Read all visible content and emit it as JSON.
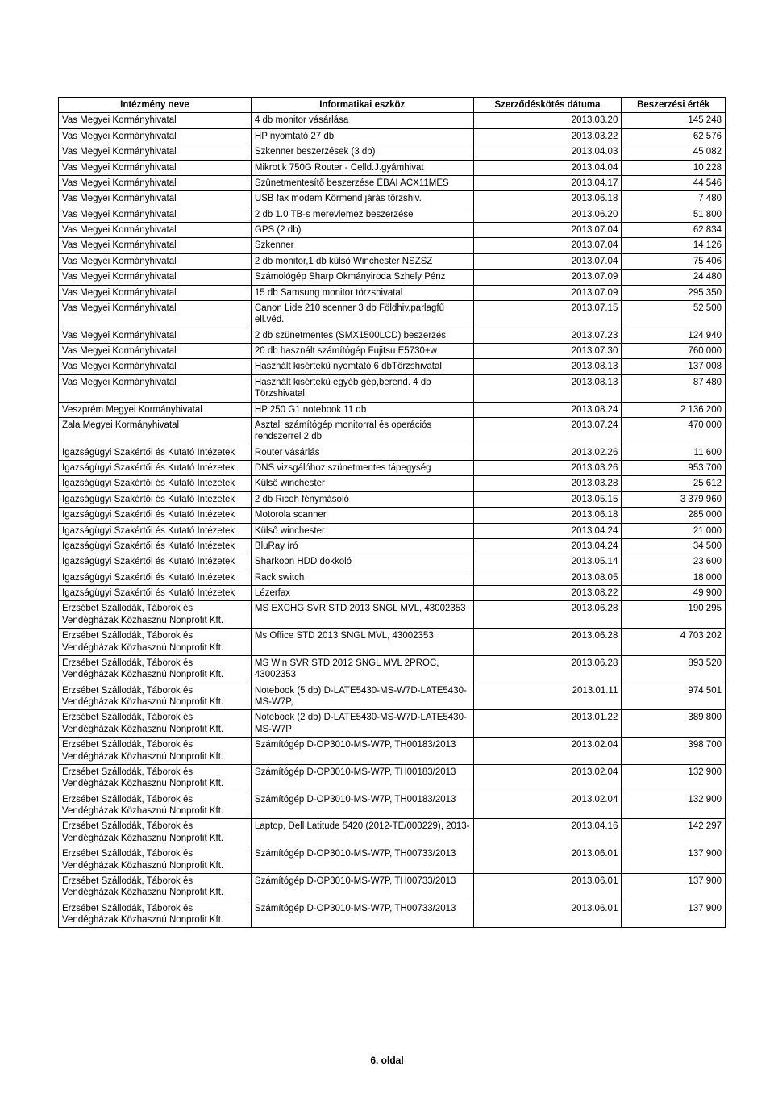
{
  "table": {
    "headers": {
      "institution": "Intézmény neve",
      "tool": "Informatikai eszköz",
      "date": "Szerződéskötés dátuma",
      "value": "Beszerzési érték"
    },
    "column_alignment": [
      "left",
      "left",
      "right",
      "right"
    ],
    "font_size_pt": 9,
    "header_font_weight": "bold",
    "border_color": "#000000",
    "background_color": "#ffffff",
    "rows": [
      {
        "institution": "Vas Megyei Kormányhivatal",
        "tool": "4 db monitor vásárlása",
        "date": "2013.03.20",
        "value": "145 248"
      },
      {
        "institution": "Vas Megyei Kormányhivatal",
        "tool": "HP nyomtató 27 db",
        "date": "2013.03.22",
        "value": "62 576"
      },
      {
        "institution": "Vas Megyei Kormányhivatal",
        "tool": "Szkenner beszerzések (3 db)",
        "date": "2013.04.03",
        "value": "45 082"
      },
      {
        "institution": "Vas Megyei Kormányhivatal",
        "tool": "Mikrotik 750G Router - Celld.J.gyámhivat",
        "date": "2013.04.04",
        "value": "10 228"
      },
      {
        "institution": "Vas Megyei Kormányhivatal",
        "tool": "Szünetmentesítő beszerzése ÉBÁI ACX11MES",
        "date": "2013.04.17",
        "value": "44 546"
      },
      {
        "institution": "Vas Megyei Kormányhivatal",
        "tool": "USB fax modem Körmend járás törzshiv.",
        "date": "2013.06.18",
        "value": "7 480"
      },
      {
        "institution": "Vas Megyei Kormányhivatal",
        "tool": "2 db 1.0 TB-s merevlemez beszerzése",
        "date": "2013.06.20",
        "value": "51 800"
      },
      {
        "institution": "Vas Megyei Kormányhivatal",
        "tool": "GPS (2 db)",
        "date": "2013.07.04",
        "value": "62 834"
      },
      {
        "institution": "Vas Megyei Kormányhivatal",
        "tool": "Szkenner",
        "date": "2013.07.04",
        "value": "14 126"
      },
      {
        "institution": "Vas Megyei Kormányhivatal",
        "tool": "2 db monitor,1 db külső Winchester NSZSZ",
        "date": "2013.07.04",
        "value": "75 406"
      },
      {
        "institution": "Vas Megyei Kormányhivatal",
        "tool": "Számológép Sharp Okmányiroda Szhely Pénz",
        "date": "2013.07.09",
        "value": "24 480"
      },
      {
        "institution": "Vas Megyei Kormányhivatal",
        "tool": "15 db Samsung monitor törzshivatal",
        "date": "2013.07.09",
        "value": "295 350"
      },
      {
        "institution": "Vas Megyei Kormányhivatal",
        "tool": "Canon Lide 210 scenner 3 db Földhiv.parlagfű ell.véd.",
        "date": "2013.07.15",
        "value": "52 500"
      },
      {
        "institution": "Vas Megyei Kormányhivatal",
        "tool": "2 db szünetmentes (SMX1500LCD) beszerzés",
        "date": "2013.07.23",
        "value": "124 940"
      },
      {
        "institution": "Vas Megyei Kormányhivatal",
        "tool": "20 db használt számítógép Fujitsu E5730+w",
        "date": "2013.07.30",
        "value": "760 000"
      },
      {
        "institution": "Vas Megyei Kormányhivatal",
        "tool": "Használt kisértékű nyomtató 6 dbTörzshivatal",
        "date": "2013.08.13",
        "value": "137 008"
      },
      {
        "institution": "Vas Megyei Kormányhivatal",
        "tool": "Használt kisértékű egyéb gép,berend. 4 db Törzshivatal",
        "date": "2013.08.13",
        "value": "87 480"
      },
      {
        "institution": "Veszprém Megyei Kormányhivatal",
        "tool": "HP 250 G1 notebook 11 db",
        "date": "2013.08.24",
        "value": "2 136 200"
      },
      {
        "institution": "Zala Megyei Kormányhivatal",
        "tool": "Asztali számítógép monitorral és operációs rendszerrel 2 db",
        "date": "2013.07.24",
        "value": "470 000"
      },
      {
        "institution": "Igazságügyi Szakértői és Kutató Intézetek",
        "tool": "Router vásárlás",
        "date": "2013.02.26",
        "value": "11 600"
      },
      {
        "institution": "Igazságügyi Szakértői és Kutató Intézetek",
        "tool": "DNS vizsgálóhoz szünetmentes tápegység",
        "date": "2013.03.26",
        "value": "953 700"
      },
      {
        "institution": "Igazságügyi Szakértői és Kutató Intézetek",
        "tool": "Külső winchester",
        "date": "2013.03.28",
        "value": "25 612"
      },
      {
        "institution": "Igazságügyi Szakértői és Kutató Intézetek",
        "tool": "2 db Ricoh fénymásoló",
        "date": "2013.05.15",
        "value": "3 379 960"
      },
      {
        "institution": "Igazságügyi Szakértői és Kutató Intézetek",
        "tool": "Motorola scanner",
        "date": "2013.06.18",
        "value": "285 000"
      },
      {
        "institution": "Igazságügyi Szakértői és Kutató Intézetek",
        "tool": "Külső winchester",
        "date": "2013.04.24",
        "value": "21 000"
      },
      {
        "institution": "Igazságügyi Szakértői és Kutató Intézetek",
        "tool": "BluRay író",
        "date": "2013.04.24",
        "value": "34 500"
      },
      {
        "institution": "Igazságügyi Szakértői és Kutató Intézetek",
        "tool": "Sharkoon HDD dokkoló",
        "date": "2013.05.14",
        "value": "23 600"
      },
      {
        "institution": "Igazságügyi Szakértői és Kutató Intézetek",
        "tool": "Rack switch",
        "date": "2013.08.05",
        "value": "18 000"
      },
      {
        "institution": "Igazságügyi Szakértői és Kutató Intézetek",
        "tool": "Lézerfax",
        "date": "2013.08.22",
        "value": "49 900"
      },
      {
        "institution": "Erzsébet Szállodák, Táborok és Vendégházak Közhasznú Nonprofit Kft.",
        "tool": "MS EXCHG SVR STD 2013 SNGL MVL, 43002353",
        "date": "2013.06.28",
        "value": "190 295"
      },
      {
        "institution": "Erzsébet Szállodák, Táborok és Vendégházak Közhasznú Nonprofit Kft.",
        "tool": "Ms Office STD 2013 SNGL MVL, 43002353",
        "date": "2013.06.28",
        "value": "4 703 202"
      },
      {
        "institution": "Erzsébet Szállodák, Táborok és Vendégházak Közhasznú Nonprofit Kft.",
        "tool": "MS Win SVR STD 2012 SNGL MVL 2PROC, 43002353",
        "date": "2013.06.28",
        "value": "893 520"
      },
      {
        "institution": "Erzsébet Szállodák, Táborok és Vendégházak Közhasznú Nonprofit Kft.",
        "tool": "Notebook (5 db) D-LATE5430-MS-W7D-LATE5430-MS-W7P,",
        "date": "2013.01.11",
        "value": "974 501"
      },
      {
        "institution": "Erzsébet Szállodák, Táborok és Vendégházak Közhasznú Nonprofit Kft.",
        "tool": "Notebook (2 db) D-LATE5430-MS-W7D-LATE5430-MS-W7P",
        "date": "2013.01.22",
        "value": "389 800"
      },
      {
        "institution": "Erzsébet Szállodák, Táborok és Vendégházak Közhasznú Nonprofit Kft.",
        "tool": "Számítógép D-OP3010-MS-W7P, TH00183/2013",
        "date": "2013.02.04",
        "value": "398 700"
      },
      {
        "institution": "Erzsébet Szállodák, Táborok és Vendégházak Közhasznú Nonprofit Kft.",
        "tool": "Számítógép D-OP3010-MS-W7P, TH00183/2013",
        "date": "2013.02.04",
        "value": "132 900"
      },
      {
        "institution": "Erzsébet Szállodák, Táborok és Vendégházak Közhasznú Nonprofit Kft.",
        "tool": "Számítógép D-OP3010-MS-W7P, TH00183/2013",
        "date": "2013.02.04",
        "value": "132 900"
      },
      {
        "institution": "Erzsébet Szállodák, Táborok és Vendégházak Közhasznú Nonprofit Kft.",
        "tool": "Laptop, Dell Latitude 5420 (2012-TE/000229), 2013-",
        "date": "2013.04.16",
        "value": "142 297"
      },
      {
        "institution": "Erzsébet Szállodák, Táborok és Vendégházak Közhasznú Nonprofit Kft.",
        "tool": "Számítógép D-OP3010-MS-W7P, TH00733/2013",
        "date": "2013.06.01",
        "value": "137 900"
      },
      {
        "institution": "Erzsébet Szállodák, Táborok és Vendégházak Közhasznú Nonprofit Kft.",
        "tool": "Számítógép D-OP3010-MS-W7P, TH00733/2013",
        "date": "2013.06.01",
        "value": "137 900"
      },
      {
        "institution": "Erzsébet Szállodák, Táborok és Vendégházak Közhasznú Nonprofit Kft.",
        "tool": "Számítógép D-OP3010-MS-W7P, TH00733/2013",
        "date": "2013.06.01",
        "value": "137 900"
      }
    ]
  },
  "footer": {
    "page_label": "6. oldal"
  }
}
